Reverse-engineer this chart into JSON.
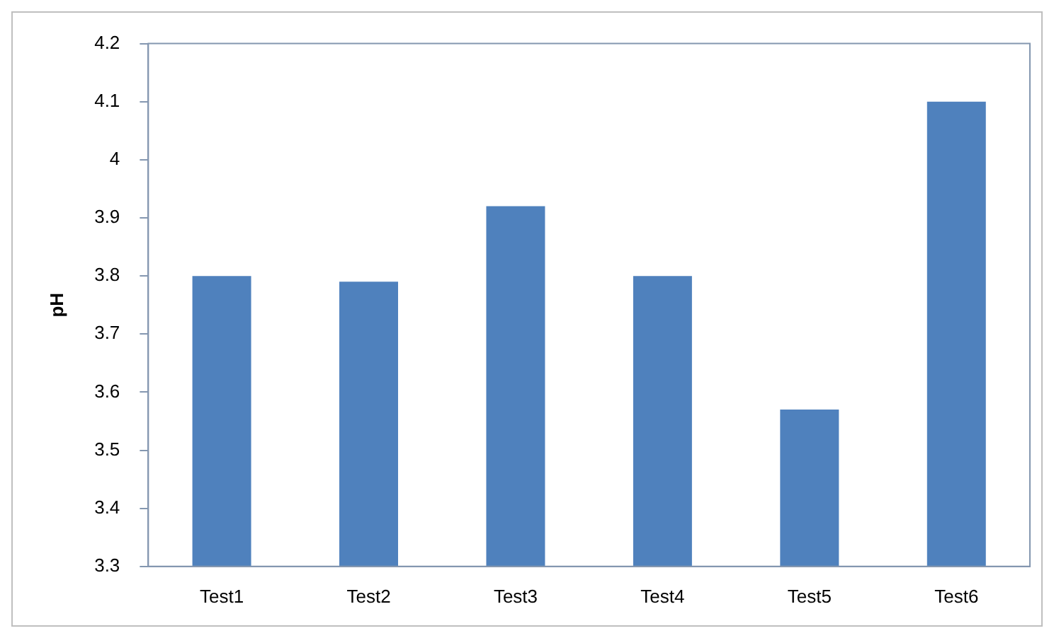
{
  "chart_data": {
    "type": "bar",
    "ylabel": "pH",
    "categories": [
      "Test1",
      "Test2",
      "Test3",
      "Test4",
      "Test5",
      "Test6"
    ],
    "values": [
      3.8,
      3.79,
      3.92,
      3.8,
      3.57,
      4.1
    ],
    "color": "#4f81bd",
    "ylim": [
      3.3,
      4.2
    ],
    "yticks": [
      3.3,
      3.4,
      3.5,
      3.6,
      3.7,
      3.8,
      3.9,
      4,
      4.1,
      4.2
    ],
    "grid": false,
    "legend": false
  }
}
